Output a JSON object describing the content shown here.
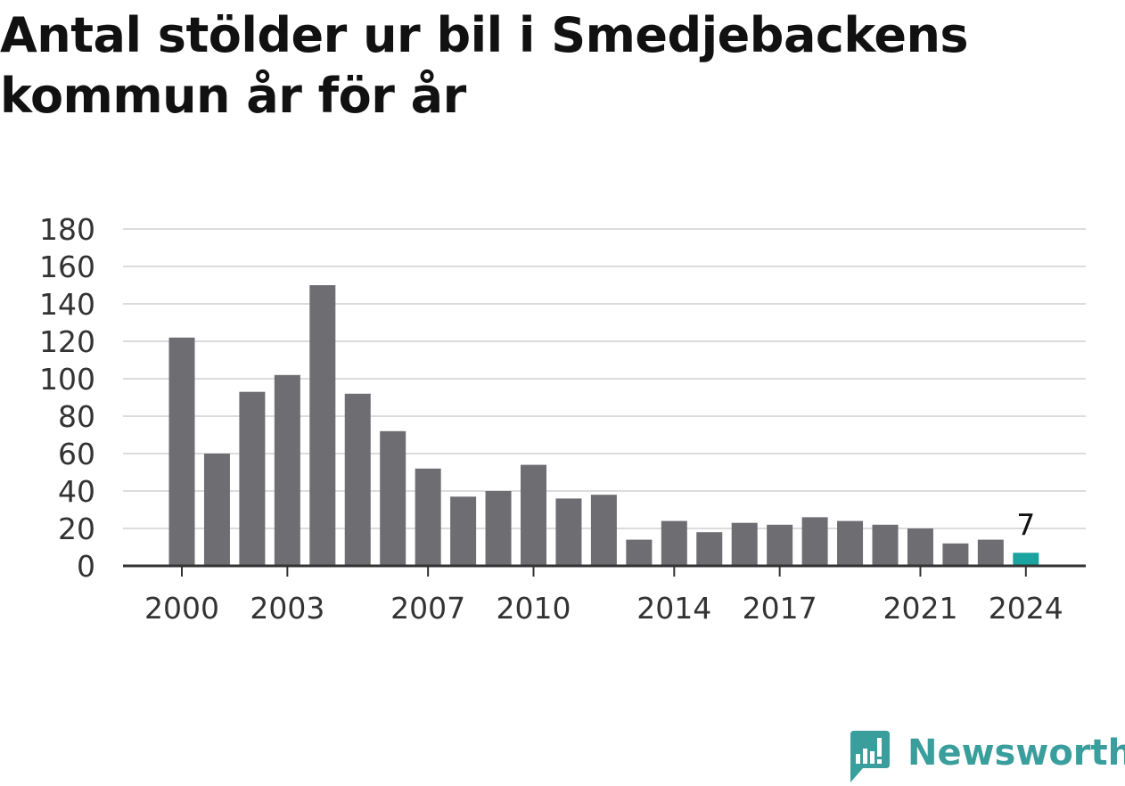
{
  "title": "Antal stölder ur bil i Smedjebackens kommun år för år",
  "colors": {
    "bar": "#6e6d72",
    "highlight": "#1aa39f",
    "grid": "#dcdcdc",
    "axis": "#333333",
    "text": "#333333",
    "brand": "#3a9e9c"
  },
  "chart_data": {
    "type": "bar",
    "x": [
      2000,
      2001,
      2002,
      2003,
      2004,
      2005,
      2006,
      2007,
      2008,
      2009,
      2010,
      2011,
      2012,
      2013,
      2014,
      2015,
      2016,
      2017,
      2018,
      2019,
      2020,
      2021,
      2022,
      2023,
      2024
    ],
    "values": [
      122,
      60,
      93,
      102,
      150,
      92,
      72,
      52,
      37,
      40,
      54,
      36,
      38,
      14,
      24,
      18,
      23,
      22,
      26,
      24,
      22,
      20,
      12,
      14,
      7
    ],
    "ylim": [
      0,
      180
    ],
    "yticks": [
      0,
      20,
      40,
      60,
      80,
      100,
      120,
      140,
      160,
      180
    ],
    "xtick_labels": [
      "2000",
      "2003",
      "2007",
      "2010",
      "2014",
      "2017",
      "2021",
      "2024"
    ],
    "highlight": {
      "x": 2024,
      "label": "7"
    },
    "grid": true,
    "xlabel": "",
    "ylabel": ""
  },
  "logo": {
    "text": "Newsworthy"
  }
}
